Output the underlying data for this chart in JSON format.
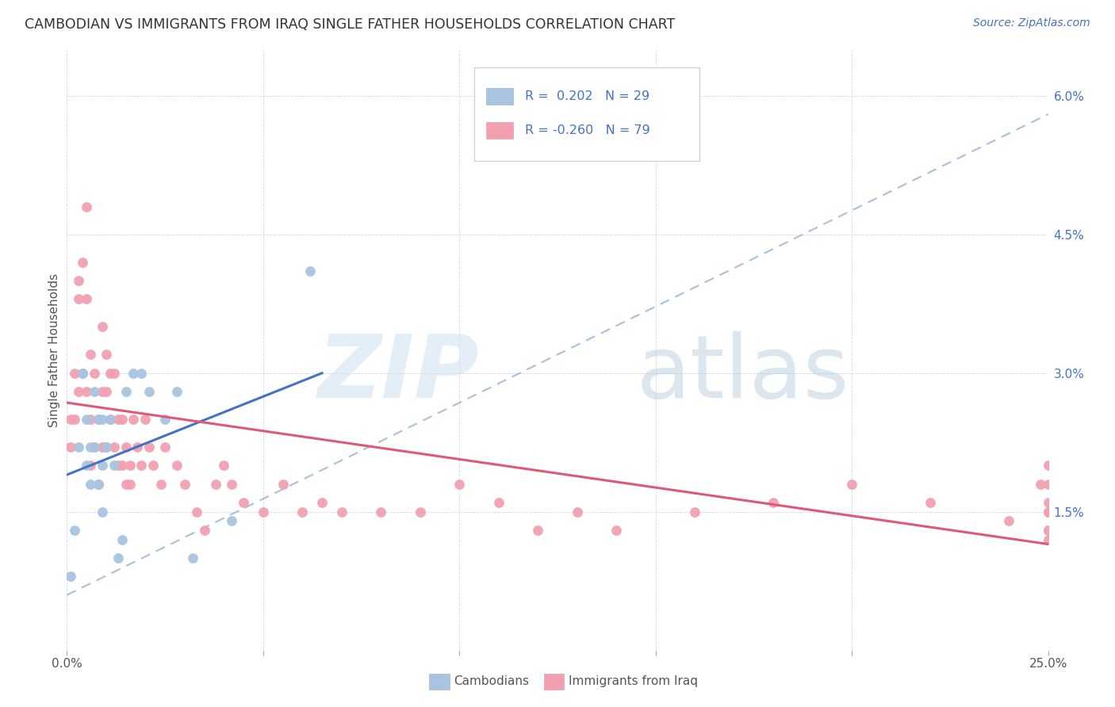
{
  "title": "CAMBODIAN VS IMMIGRANTS FROM IRAQ SINGLE FATHER HOUSEHOLDS CORRELATION CHART",
  "source": "Source: ZipAtlas.com",
  "ylabel": "Single Father Households",
  "xlim": [
    0.0,
    0.25
  ],
  "ylim": [
    0.0,
    0.065
  ],
  "xticks": [
    0.0,
    0.05,
    0.1,
    0.15,
    0.2,
    0.25
  ],
  "yticks": [
    0.0,
    0.015,
    0.03,
    0.045,
    0.06
  ],
  "ytick_labels": [
    "",
    "1.5%",
    "3.0%",
    "4.5%",
    "6.0%"
  ],
  "xtick_labels": [
    "0.0%",
    "",
    "",
    "",
    "",
    "25.0%"
  ],
  "cambodian_color": "#a8c4e0",
  "iraq_color": "#f2a0b0",
  "cambodian_line_color": "#4472c4",
  "iraq_line_color": "#e05878",
  "dashed_line_color": "#a8c0d8",
  "background_color": "#ffffff",
  "grid_color": "#d0d8e8",
  "cam_x": [
    0.001,
    0.002,
    0.003,
    0.004,
    0.005,
    0.005,
    0.006,
    0.006,
    0.007,
    0.007,
    0.008,
    0.008,
    0.009,
    0.009,
    0.009,
    0.01,
    0.011,
    0.012,
    0.013,
    0.014,
    0.015,
    0.017,
    0.019,
    0.021,
    0.025,
    0.028,
    0.032,
    0.042,
    0.062
  ],
  "cam_y": [
    0.008,
    0.013,
    0.022,
    0.03,
    0.025,
    0.02,
    0.022,
    0.018,
    0.028,
    0.022,
    0.025,
    0.018,
    0.025,
    0.02,
    0.015,
    0.022,
    0.025,
    0.02,
    0.01,
    0.012,
    0.028,
    0.03,
    0.03,
    0.028,
    0.025,
    0.028,
    0.01,
    0.014,
    0.041
  ],
  "iraq_x": [
    0.001,
    0.001,
    0.002,
    0.002,
    0.003,
    0.003,
    0.003,
    0.004,
    0.004,
    0.005,
    0.005,
    0.005,
    0.006,
    0.006,
    0.006,
    0.007,
    0.007,
    0.008,
    0.008,
    0.009,
    0.009,
    0.009,
    0.01,
    0.01,
    0.01,
    0.011,
    0.011,
    0.012,
    0.012,
    0.013,
    0.013,
    0.014,
    0.014,
    0.015,
    0.015,
    0.016,
    0.016,
    0.017,
    0.018,
    0.019,
    0.02,
    0.021,
    0.022,
    0.024,
    0.025,
    0.028,
    0.03,
    0.033,
    0.035,
    0.038,
    0.04,
    0.042,
    0.045,
    0.05,
    0.055,
    0.06,
    0.065,
    0.07,
    0.08,
    0.09,
    0.1,
    0.11,
    0.12,
    0.13,
    0.14,
    0.16,
    0.18,
    0.2,
    0.22,
    0.24,
    0.248,
    0.25,
    0.25,
    0.25,
    0.25,
    0.25,
    0.25,
    0.25,
    0.25
  ],
  "iraq_y": [
    0.025,
    0.022,
    0.03,
    0.025,
    0.04,
    0.038,
    0.028,
    0.042,
    0.03,
    0.048,
    0.038,
    0.028,
    0.032,
    0.025,
    0.02,
    0.03,
    0.022,
    0.025,
    0.018,
    0.035,
    0.028,
    0.022,
    0.032,
    0.028,
    0.022,
    0.03,
    0.025,
    0.03,
    0.022,
    0.025,
    0.02,
    0.025,
    0.02,
    0.022,
    0.018,
    0.02,
    0.018,
    0.025,
    0.022,
    0.02,
    0.025,
    0.022,
    0.02,
    0.018,
    0.022,
    0.02,
    0.018,
    0.015,
    0.013,
    0.018,
    0.02,
    0.018,
    0.016,
    0.015,
    0.018,
    0.015,
    0.016,
    0.015,
    0.015,
    0.015,
    0.018,
    0.016,
    0.013,
    0.015,
    0.013,
    0.015,
    0.016,
    0.018,
    0.016,
    0.014,
    0.018,
    0.02,
    0.016,
    0.013,
    0.015,
    0.013,
    0.012,
    0.015,
    0.018
  ],
  "cam_line_x0": 0.0,
  "cam_line_x1": 0.065,
  "cam_line_y0": 0.019,
  "cam_line_y1": 0.03,
  "iraq_line_x0": 0.0,
  "iraq_line_x1": 0.25,
  "iraq_line_y0": 0.0268,
  "iraq_line_y1": 0.0115,
  "dash_line_x0": 0.0,
  "dash_line_x1": 0.25,
  "dash_line_y0": 0.006,
  "dash_line_y1": 0.058
}
